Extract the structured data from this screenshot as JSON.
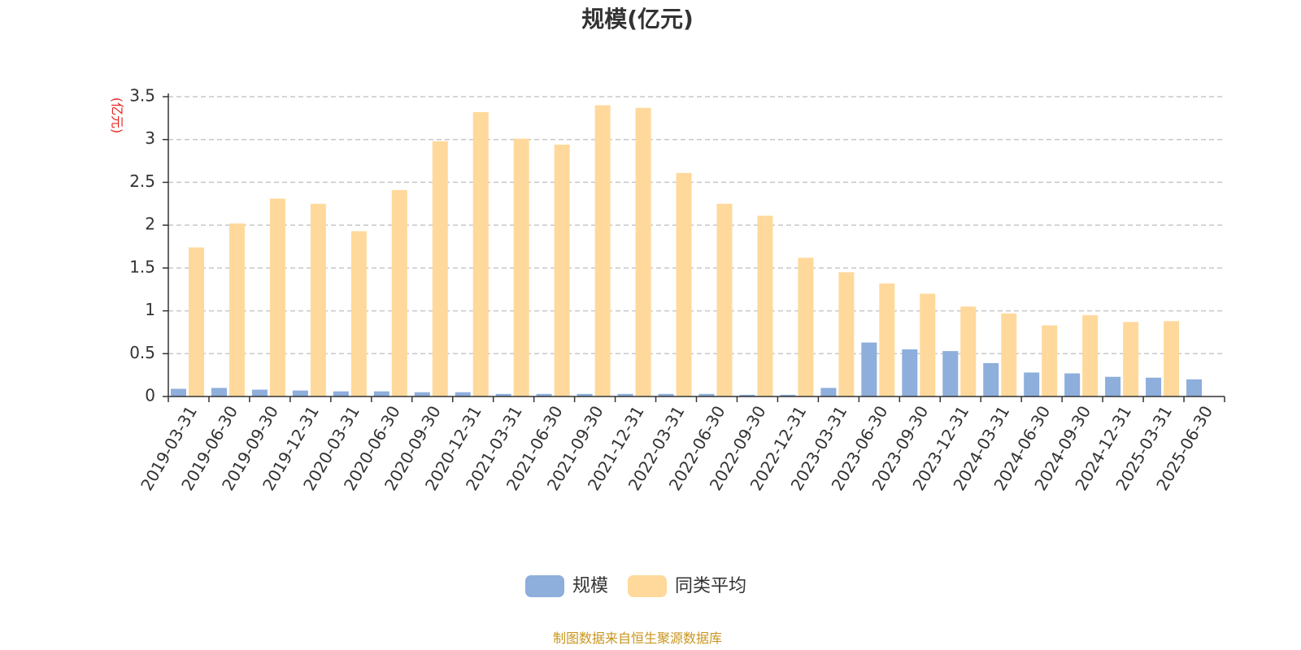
{
  "chart_data": {
    "type": "bar",
    "title": "规模(亿元)",
    "ylabel": "(亿元)",
    "ylim": [
      0,
      3.5
    ],
    "yticks": [
      0,
      0.5,
      1,
      1.5,
      2,
      2.5,
      3,
      3.5
    ],
    "ytick_labels": [
      "0",
      "0.5",
      "1",
      "1.5",
      "2",
      "2.5",
      "3",
      "3.5"
    ],
    "grid": true,
    "legend_position": "bottom",
    "categories": [
      "2019-03-31",
      "2019-06-30",
      "2019-09-30",
      "2019-12-31",
      "2020-03-31",
      "2020-06-30",
      "2020-09-30",
      "2020-12-31",
      "2021-03-31",
      "2021-06-30",
      "2021-09-30",
      "2021-12-31",
      "2022-03-31",
      "2022-06-30",
      "2022-09-30",
      "2022-12-31",
      "2023-03-31",
      "2023-06-30",
      "2023-09-30",
      "2023-12-31",
      "2024-03-31",
      "2024-06-30",
      "2024-09-30",
      "2024-12-31",
      "2025-03-31",
      "2025-06-30"
    ],
    "series": [
      {
        "name": "规模",
        "color": "#8eaedc",
        "values": [
          0.09,
          0.1,
          0.08,
          0.07,
          0.06,
          0.06,
          0.05,
          0.05,
          0.03,
          0.03,
          0.03,
          0.03,
          0.03,
          0.03,
          0.02,
          0.02,
          0.1,
          0.63,
          0.55,
          0.53,
          0.39,
          0.28,
          0.27,
          0.23,
          0.22,
          0.2
        ]
      },
      {
        "name": "同类平均",
        "color": "#ffd99b",
        "values": [
          1.74,
          2.02,
          2.31,
          2.25,
          1.93,
          2.41,
          2.98,
          3.32,
          3.01,
          2.94,
          3.4,
          3.37,
          2.61,
          2.25,
          2.11,
          1.62,
          1.45,
          1.32,
          1.2,
          1.05,
          0.97,
          0.83,
          0.95,
          0.87,
          0.88,
          null
        ]
      }
    ]
  },
  "source_text": "制图数据来自恒生聚源数据库"
}
